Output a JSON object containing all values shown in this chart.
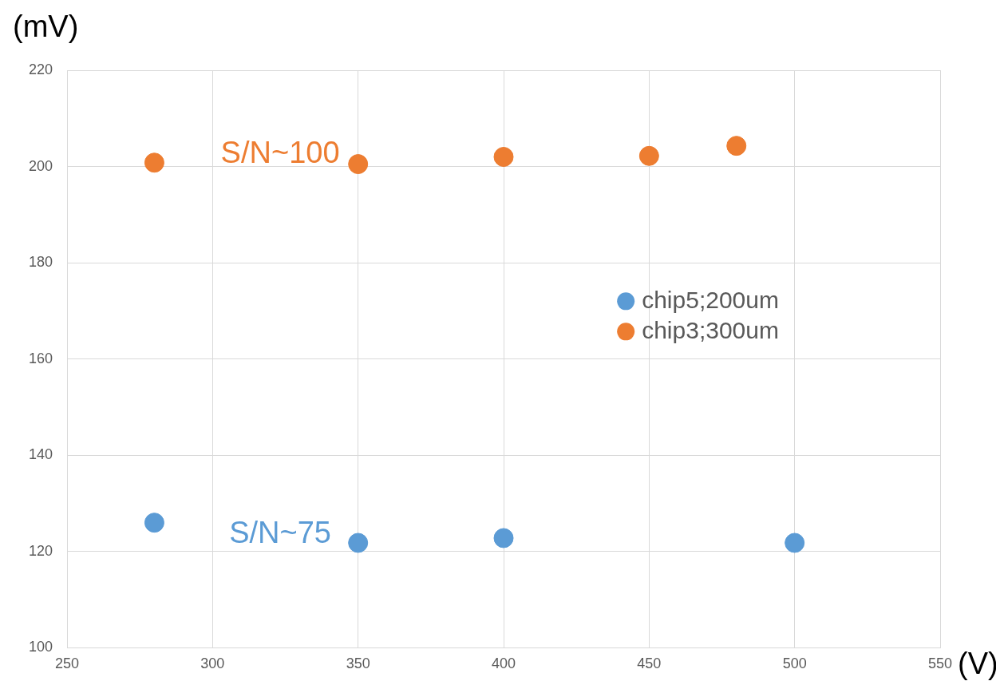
{
  "chart_data": {
    "type": "scatter",
    "xlabel": "(V)",
    "ylabel": "(mV)",
    "series": [
      {
        "name": "chip5;200um",
        "color": "#5b9bd5",
        "x": [
          280,
          350,
          400,
          500
        ],
        "values": [
          126,
          121.8,
          122.8,
          121.8
        ]
      },
      {
        "name": "chip3;300um",
        "color": "#ed7d31",
        "x": [
          280,
          350,
          400,
          450,
          480
        ],
        "values": [
          200.8,
          200.5,
          202,
          202.2,
          204.3
        ]
      }
    ],
    "annotations": [
      "S/N~75",
      "S/N~100"
    ],
    "xlim": [
      250,
      550
    ],
    "xticks": [
      250,
      300,
      350,
      400,
      450,
      500,
      550
    ],
    "ylim": [
      100,
      220
    ],
    "yticks": [
      100,
      120,
      140,
      160,
      180,
      200,
      220
    ],
    "grid": true,
    "legend": "right",
    "marker": "circle"
  }
}
